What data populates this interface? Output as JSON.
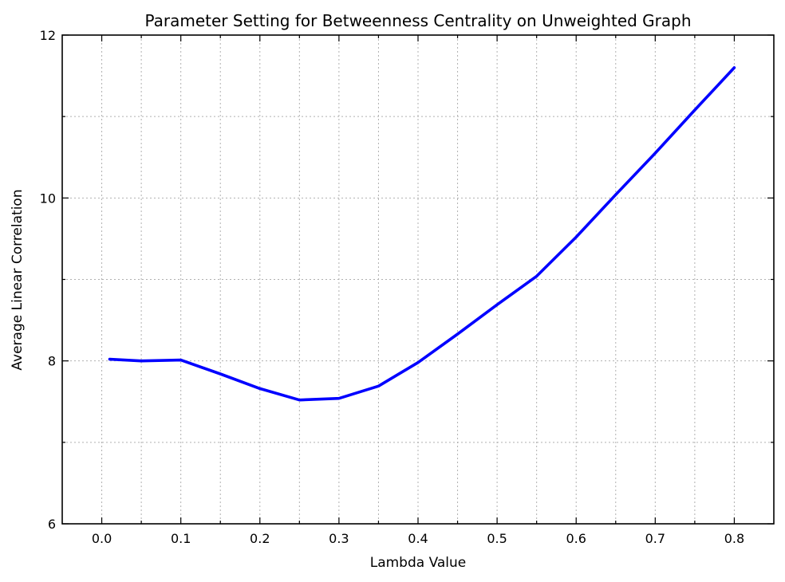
{
  "chart_data": {
    "type": "line",
    "title": "Parameter Setting for Betweenness Centrality on Unweighted Graph",
    "xlabel": "Lambda Value",
    "ylabel": "Average Linear Correlation",
    "xlim": [
      -0.05,
      0.85
    ],
    "ylim": [
      6,
      12
    ],
    "x_ticks": [
      0.0,
      0.1,
      0.2,
      0.3,
      0.4,
      0.5,
      0.6,
      0.7,
      0.8
    ],
    "x_tick_labels": [
      "0.0",
      "0.1",
      "0.2",
      "0.3",
      "0.4",
      "0.5",
      "0.6",
      "0.7",
      "0.8"
    ],
    "x_minor_ticks": [
      0.05,
      0.15,
      0.25,
      0.35,
      0.45,
      0.55,
      0.65,
      0.75
    ],
    "y_ticks": [
      6,
      8,
      10,
      12
    ],
    "y_tick_labels": [
      "6",
      "8",
      "10",
      "12"
    ],
    "y_minor_ticks": [
      7,
      9,
      11
    ],
    "grid": true,
    "grid_style": "dotted",
    "legend": "none",
    "series": [
      {
        "color": "#0000ff",
        "x": [
          0.01,
          0.05,
          0.1,
          0.15,
          0.2,
          0.25,
          0.3,
          0.35,
          0.4,
          0.45,
          0.5,
          0.55,
          0.6,
          0.65,
          0.7,
          0.75,
          0.8
        ],
        "y": [
          8.02,
          8.0,
          8.01,
          7.84,
          7.66,
          7.52,
          7.54,
          7.69,
          7.98,
          8.33,
          8.69,
          9.04,
          9.52,
          10.04,
          10.55,
          11.08,
          11.6
        ]
      }
    ]
  }
}
